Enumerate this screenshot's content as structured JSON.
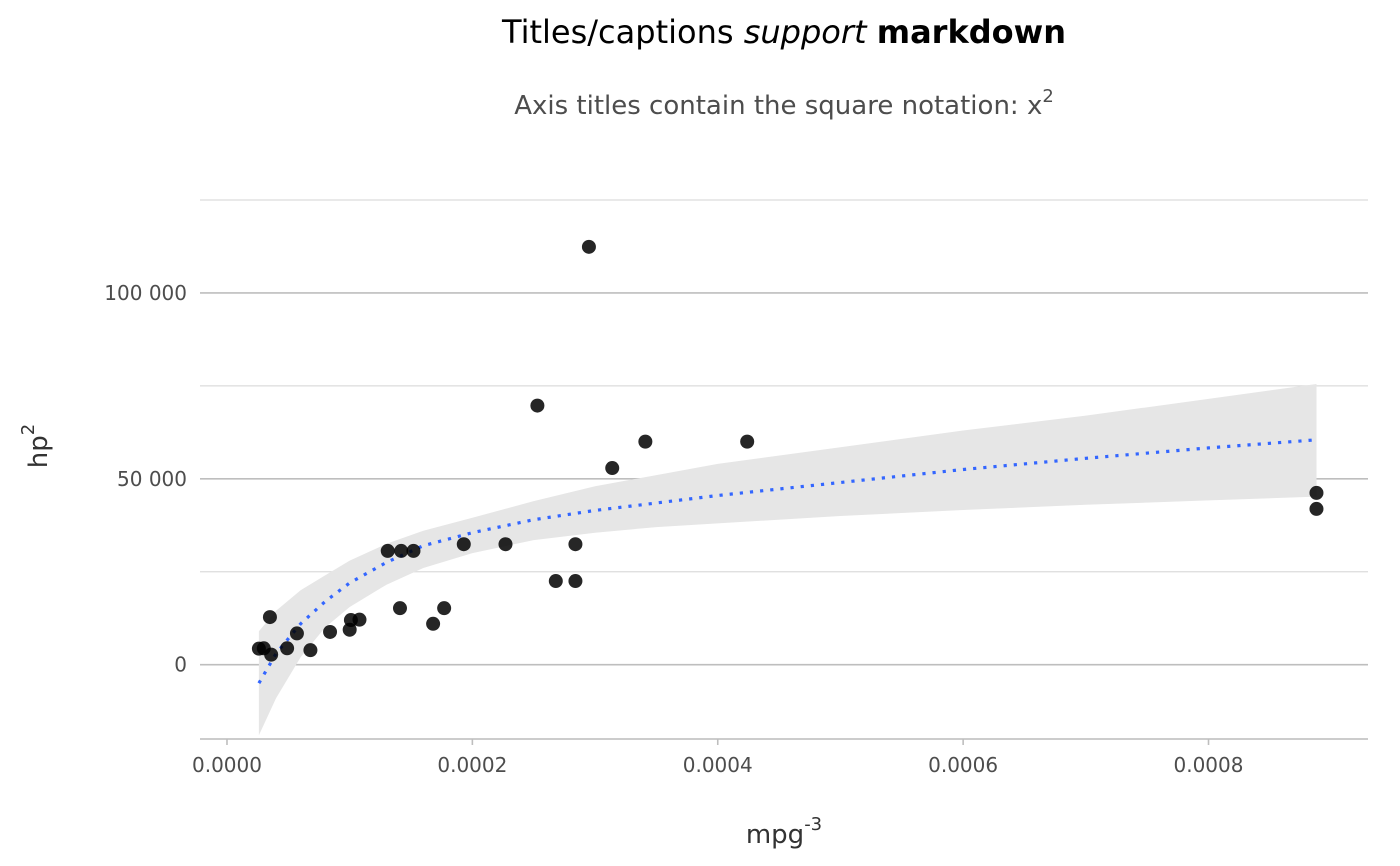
{
  "chart_data": {
    "type": "scatter",
    "title": {
      "prefix": "Titles/captions ",
      "italic": "support",
      "space": " ",
      "bold": "markdown"
    },
    "subtitle": {
      "text": "Axis titles contain the square notation: x",
      "superscript": "2"
    },
    "xlabel": {
      "base": "mpg",
      "superscript": "-3"
    },
    "ylabel": {
      "base": "hp",
      "superscript": "2"
    },
    "xlim": [
      -2.2e-05,
      0.00093
    ],
    "ylim": [
      -20000,
      125000
    ],
    "x_ticks": [
      {
        "value": 0,
        "label": "0.0000"
      },
      {
        "value": 0.0002,
        "label": "0.0002"
      },
      {
        "value": 0.0004,
        "label": "0.0004"
      },
      {
        "value": 0.0006,
        "label": "0.0006"
      },
      {
        "value": 0.0008,
        "label": "0.0008"
      }
    ],
    "y_ticks": [
      {
        "value": 0,
        "label": "0"
      },
      {
        "value": 50000,
        "label": "50 000"
      },
      {
        "value": 100000,
        "label": "100 000"
      }
    ],
    "y_minor_gridlines": [
      -20000,
      25000,
      75000,
      125000
    ],
    "grid": true,
    "points": [
      {
        "x": 2.6e-05,
        "y": 4300
      },
      {
        "x": 3e-05,
        "y": 4400
      },
      {
        "x": 3.5e-05,
        "y": 12800
      },
      {
        "x": 3.6e-05,
        "y": 2700
      },
      {
        "x": 4.9e-05,
        "y": 4400
      },
      {
        "x": 5.7e-05,
        "y": 8400
      },
      {
        "x": 6.8e-05,
        "y": 3900
      },
      {
        "x": 8.4e-05,
        "y": 8800
      },
      {
        "x": 0.0001,
        "y": 9400
      },
      {
        "x": 0.000101,
        "y": 12000
      },
      {
        "x": 0.000108,
        "y": 12100
      },
      {
        "x": 0.000131,
        "y": 30600
      },
      {
        "x": 0.000141,
        "y": 15200
      },
      {
        "x": 0.000142,
        "y": 30600
      },
      {
        "x": 0.000152,
        "y": 30600
      },
      {
        "x": 0.000168,
        "y": 11000
      },
      {
        "x": 0.000177,
        "y": 15200
      },
      {
        "x": 0.000193,
        "y": 32400
      },
      {
        "x": 0.000227,
        "y": 32400
      },
      {
        "x": 0.000253,
        "y": 69700
      },
      {
        "x": 0.000268,
        "y": 22500
      },
      {
        "x": 0.000284,
        "y": 22500
      },
      {
        "x": 0.000284,
        "y": 32400
      },
      {
        "x": 0.000295,
        "y": 112400
      },
      {
        "x": 0.000314,
        "y": 52900
      },
      {
        "x": 0.000341,
        "y": 60000
      },
      {
        "x": 0.000424,
        "y": 60000
      },
      {
        "x": 0.000888,
        "y": 46200
      },
      {
        "x": 0.000888,
        "y": 41900
      }
    ],
    "smooth": {
      "x": [
        2.6e-05,
        4e-05,
        6e-05,
        8e-05,
        0.0001,
        0.00013,
        0.00016,
        0.0002,
        0.00025,
        0.0003,
        0.00035,
        0.0004,
        0.0005,
        0.0006,
        0.0007,
        0.0008,
        0.000888
      ],
      "fit": [
        -5000,
        3000,
        11000,
        17000,
        22000,
        27500,
        32000,
        35500,
        39000,
        41500,
        43500,
        45500,
        49000,
        52500,
        55500,
        58300,
        60500
      ],
      "lower": [
        -19000,
        -9000,
        2000,
        10000,
        15500,
        21500,
        26000,
        30000,
        33500,
        35500,
        37000,
        38000,
        40000,
        41600,
        43000,
        44200,
        45200
      ],
      "upper": [
        9000,
        14500,
        20000,
        24000,
        28000,
        32500,
        36000,
        39500,
        44000,
        48000,
        51000,
        54000,
        58500,
        63000,
        67000,
        71500,
        75500
      ],
      "color": "#3366ff",
      "band_color": "#e6e6e6"
    },
    "point_color": "#000000",
    "grid_major_color": "#bebebe",
    "grid_minor_color": "#dcdcdc"
  }
}
